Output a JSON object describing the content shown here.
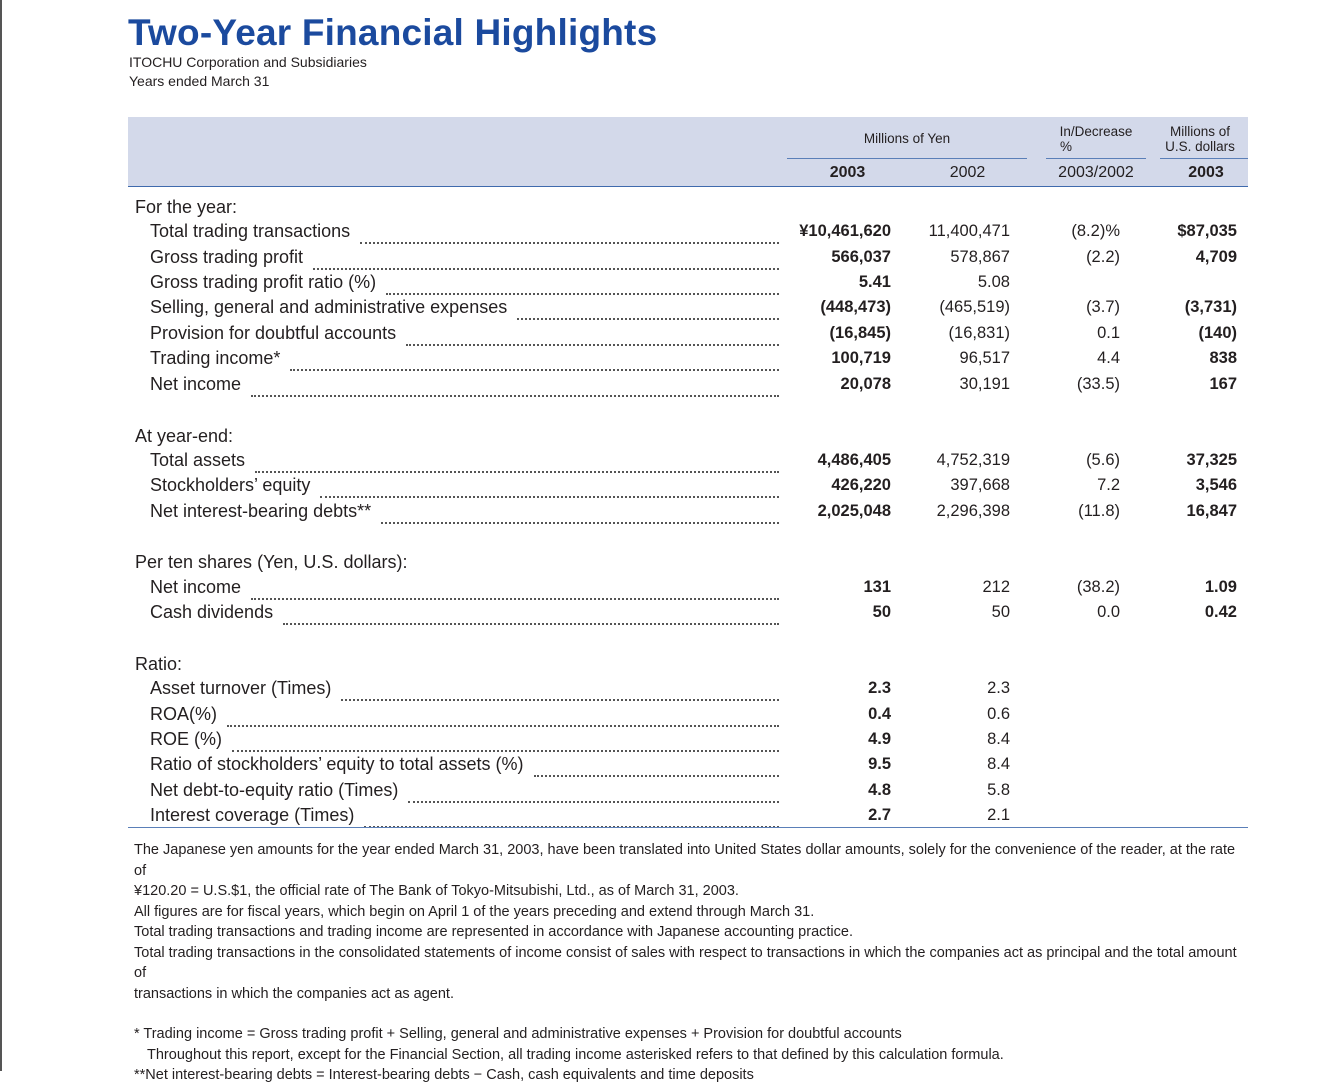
{
  "header": {
    "title": "Two-Year Financial Highlights",
    "company": "ITOCHU Corporation and Subsidiaries",
    "period": "Years ended March 31"
  },
  "table_header": {
    "millions_yen": "Millions of Yen",
    "increase_line1": "In/Decrease",
    "increase_line2": "%",
    "usd_line1": "Millions of",
    "usd_line2": "U.S. dollars",
    "col_2003": "2003",
    "col_2002": "2002",
    "col_change": "2003/2002",
    "col_usd_2003": "2003"
  },
  "sections": [
    {
      "title": "For the year:",
      "rows": [
        {
          "label": "Total trading transactions",
          "y2003": "¥10,461,620",
          "y2002": "11,400,471",
          "change": "(8.2)%",
          "usd": "$87,035"
        },
        {
          "label": "Gross trading profit",
          "y2003": "566,037",
          "y2002": "578,867",
          "change": "(2.2)",
          "usd": "4,709"
        },
        {
          "label": "Gross trading profit ratio (%)",
          "y2003": "5.41",
          "y2002": "5.08",
          "change": "",
          "usd": ""
        },
        {
          "label": "Selling, general and administrative expenses",
          "y2003": "(448,473)",
          "y2002": "(465,519)",
          "change": "(3.7)",
          "usd": "(3,731)"
        },
        {
          "label": "Provision for doubtful accounts",
          "y2003": "(16,845)",
          "y2002": "(16,831)",
          "change": "0.1",
          "usd": "(140)"
        },
        {
          "label": "Trading income*",
          "y2003": "100,719",
          "y2002": "96,517",
          "change": "4.4",
          "usd": "838"
        },
        {
          "label": "Net income",
          "y2003": "20,078",
          "y2002": "30,191",
          "change": "(33.5)",
          "usd": "167"
        }
      ]
    },
    {
      "title": "At year-end:",
      "rows": [
        {
          "label": "Total assets",
          "y2003": "4,486,405",
          "y2002": "4,752,319",
          "change": "(5.6)",
          "usd": "37,325"
        },
        {
          "label": "Stockholders’ equity",
          "y2003": "426,220",
          "y2002": "397,668",
          "change": "7.2",
          "usd": "3,546"
        },
        {
          "label": "Net interest-bearing debts**",
          "y2003": "2,025,048",
          "y2002": "2,296,398",
          "change": "(11.8)",
          "usd": "16,847"
        }
      ]
    },
    {
      "title": "Per ten shares (Yen, U.S. dollars):",
      "rows": [
        {
          "label": "Net income",
          "y2003": "131",
          "y2002": "212",
          "change": "(38.2)",
          "usd": "1.09"
        },
        {
          "label": "Cash dividends",
          "y2003": "50",
          "y2002": "50",
          "change": "0.0",
          "usd": "0.42"
        }
      ]
    },
    {
      "title": "Ratio:",
      "rows": [
        {
          "label": "Asset turnover (Times)",
          "y2003": "2.3",
          "y2002": "2.3",
          "change": "",
          "usd": ""
        },
        {
          "label": "ROA(%)",
          "y2003": "0.4",
          "y2002": "0.6",
          "change": "",
          "usd": ""
        },
        {
          "label": "ROE (%)",
          "y2003": "4.9",
          "y2002": "8.4",
          "change": "",
          "usd": ""
        },
        {
          "label": "Ratio of stockholders’ equity to total assets (%)",
          "y2003": "9.5",
          "y2002": "8.4",
          "change": "",
          "usd": ""
        },
        {
          "label": "Net debt-to-equity ratio (Times)",
          "y2003": "4.8",
          "y2002": "5.8",
          "change": "",
          "usd": ""
        },
        {
          "label": "Interest coverage (Times)",
          "y2003": "2.7",
          "y2002": "2.1",
          "change": "",
          "usd": ""
        }
      ]
    }
  ],
  "notes": {
    "translation_1": "The Japanese yen amounts for the year ended March 31, 2003, have been translated into United States dollar amounts, solely for the convenience of the reader, at the rate of",
    "translation_2": "¥120.20 = U.S.$1, the official rate of The Bank of Tokyo-Mitsubishi, Ltd., as of March 31, 2003.",
    "fiscal": "All figures are for fiscal years, which begin on April 1 of the years preceding and extend through March 31.",
    "accounting": "Total trading transactions and trading income are represented in accordance with Japanese accounting practice.",
    "consolidated_1": "Total trading transactions in the consolidated statements of income consist of sales with respect to transactions in which the companies act as principal and the total amount of",
    "consolidated_2": "transactions in which the companies act as agent.",
    "footnote_trading": "* Trading income = Gross trading profit + Selling, general and administrative expenses + Provision for doubtful accounts",
    "footnote_trading_2": "Throughout this report, except for the Financial Section, all trading income asterisked refers to that defined by this calculation formula.",
    "footnote_debt": "**Net interest-bearing debts = Interest-bearing debts − Cash, cash equivalents and time deposits"
  }
}
